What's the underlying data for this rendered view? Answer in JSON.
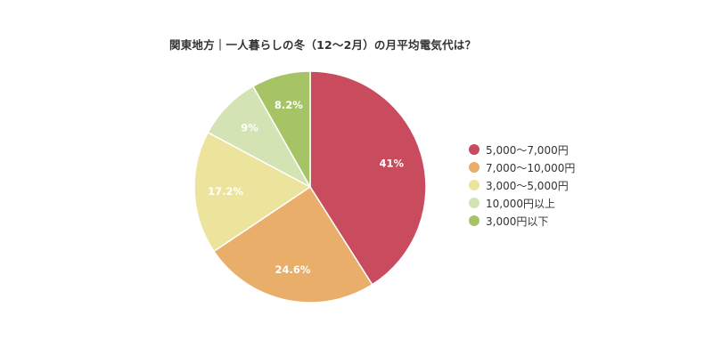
{
  "chart_data": {
    "type": "pie",
    "title": "関東地方｜一人暮らしの冬（12〜2月）の月平均電気代は？",
    "start_angle_deg": 0,
    "direction": "clockwise",
    "slices": [
      {
        "label": "5,000〜7,000円",
        "value": 41,
        "display": "41%",
        "color": "#c94c5e"
      },
      {
        "label": "7,000〜10,000円",
        "value": 24.6,
        "display": "24.6%",
        "color": "#e8ae6a"
      },
      {
        "label": "3,000〜5,000円",
        "value": 17.2,
        "display": "17.2%",
        "color": "#ece49c"
      },
      {
        "label": "10,000円以上",
        "value": 9,
        "display": "9%",
        "color": "#d3e3b4"
      },
      {
        "label": "3,000円以下",
        "value": 8.2,
        "display": "8.2%",
        "color": "#a6c466"
      }
    ],
    "legend_position": "right"
  }
}
